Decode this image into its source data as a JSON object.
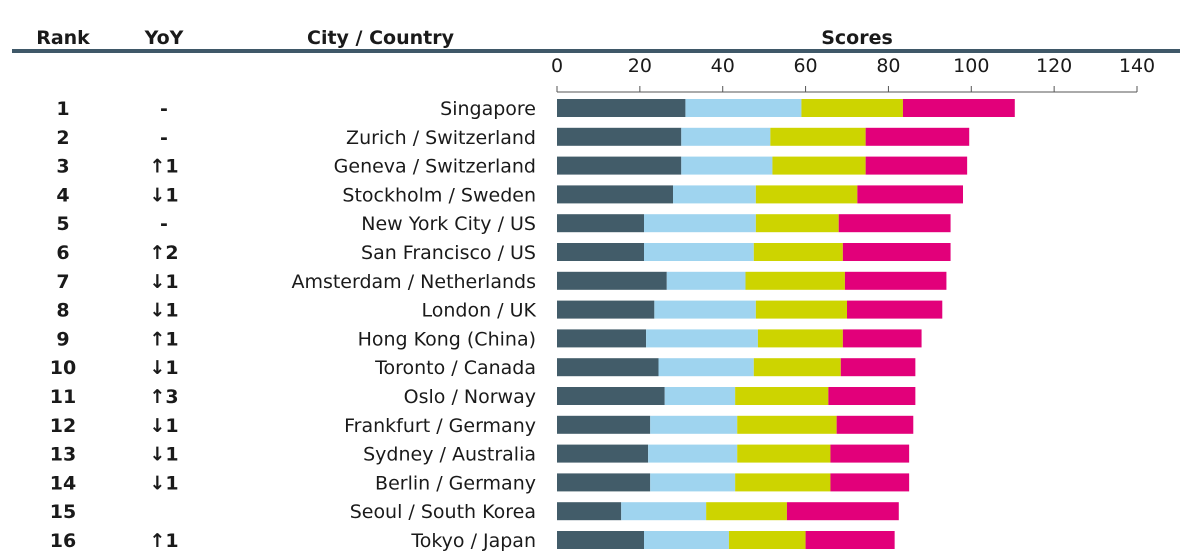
{
  "headers": {
    "rank": "Rank",
    "yoy": "YoY",
    "city": "City / Country",
    "scores": "Scores"
  },
  "colors": {
    "header_rule": "#3f5868",
    "axis": "#555555",
    "segments": [
      "#425c69",
      "#9fd4ef",
      "#cdd400",
      "#e2007a"
    ]
  },
  "chart_data": {
    "type": "bar",
    "orientation": "horizontal",
    "stacked": true,
    "xlim": [
      0,
      140
    ],
    "x_ticks": [
      0,
      20,
      40,
      60,
      80,
      100,
      120,
      140
    ],
    "grid": false,
    "legend": "none",
    "rows": [
      {
        "rank": "1",
        "yoy": "-",
        "city": "Singapore",
        "segments": [
          31.0,
          28.0,
          24.5,
          27.0
        ]
      },
      {
        "rank": "2",
        "yoy": "-",
        "city": "Zurich / Switzerland",
        "segments": [
          30.0,
          21.5,
          23.0,
          25.0
        ]
      },
      {
        "rank": "3",
        "yoy": "↑1",
        "city": "Geneva / Switzerland",
        "segments": [
          30.0,
          22.0,
          22.5,
          24.5
        ]
      },
      {
        "rank": "4",
        "yoy": "↓1",
        "city": "Stockholm / Sweden",
        "segments": [
          28.0,
          20.0,
          24.5,
          25.5
        ]
      },
      {
        "rank": "5",
        "yoy": "-",
        "city": "New York City / US",
        "segments": [
          21.0,
          27.0,
          20.0,
          27.0
        ]
      },
      {
        "rank": "6",
        "yoy": "↑2",
        "city": "San Francisco / US",
        "segments": [
          21.0,
          26.5,
          21.5,
          26.0
        ]
      },
      {
        "rank": "7",
        "yoy": "↓1",
        "city": "Amsterdam / Netherlands",
        "segments": [
          26.5,
          19.0,
          24.0,
          24.5
        ]
      },
      {
        "rank": "8",
        "yoy": "↓1",
        "city": "London / UK",
        "segments": [
          23.5,
          24.5,
          22.0,
          23.0
        ]
      },
      {
        "rank": "9",
        "yoy": "↑1",
        "city": "Hong Kong (China)",
        "segments": [
          21.5,
          27.0,
          20.5,
          19.0
        ]
      },
      {
        "rank": "10",
        "yoy": "↓1",
        "city": "Toronto / Canada",
        "segments": [
          24.5,
          23.0,
          21.0,
          18.0
        ]
      },
      {
        "rank": "11",
        "yoy": "↑3",
        "city": "Oslo / Norway",
        "segments": [
          26.0,
          17.0,
          22.5,
          21.0
        ]
      },
      {
        "rank": "12",
        "yoy": "↓1",
        "city": "Frankfurt / Germany",
        "segments": [
          22.5,
          21.0,
          24.0,
          18.5
        ]
      },
      {
        "rank": "13",
        "yoy": "↓1",
        "city": "Sydney / Australia",
        "segments": [
          22.0,
          21.5,
          22.5,
          19.0
        ]
      },
      {
        "rank": "14",
        "yoy": "↓1",
        "city": "Berlin / Germany",
        "segments": [
          22.5,
          20.5,
          23.0,
          19.0
        ]
      },
      {
        "rank": "15",
        "yoy": "",
        "city": "Seoul / South Korea",
        "segments": [
          15.5,
          20.5,
          19.5,
          27.0
        ]
      },
      {
        "rank": "16",
        "yoy": "↑1",
        "city": "Tokyo / Japan",
        "segments": [
          21.0,
          20.5,
          18.5,
          21.5
        ]
      }
    ]
  }
}
